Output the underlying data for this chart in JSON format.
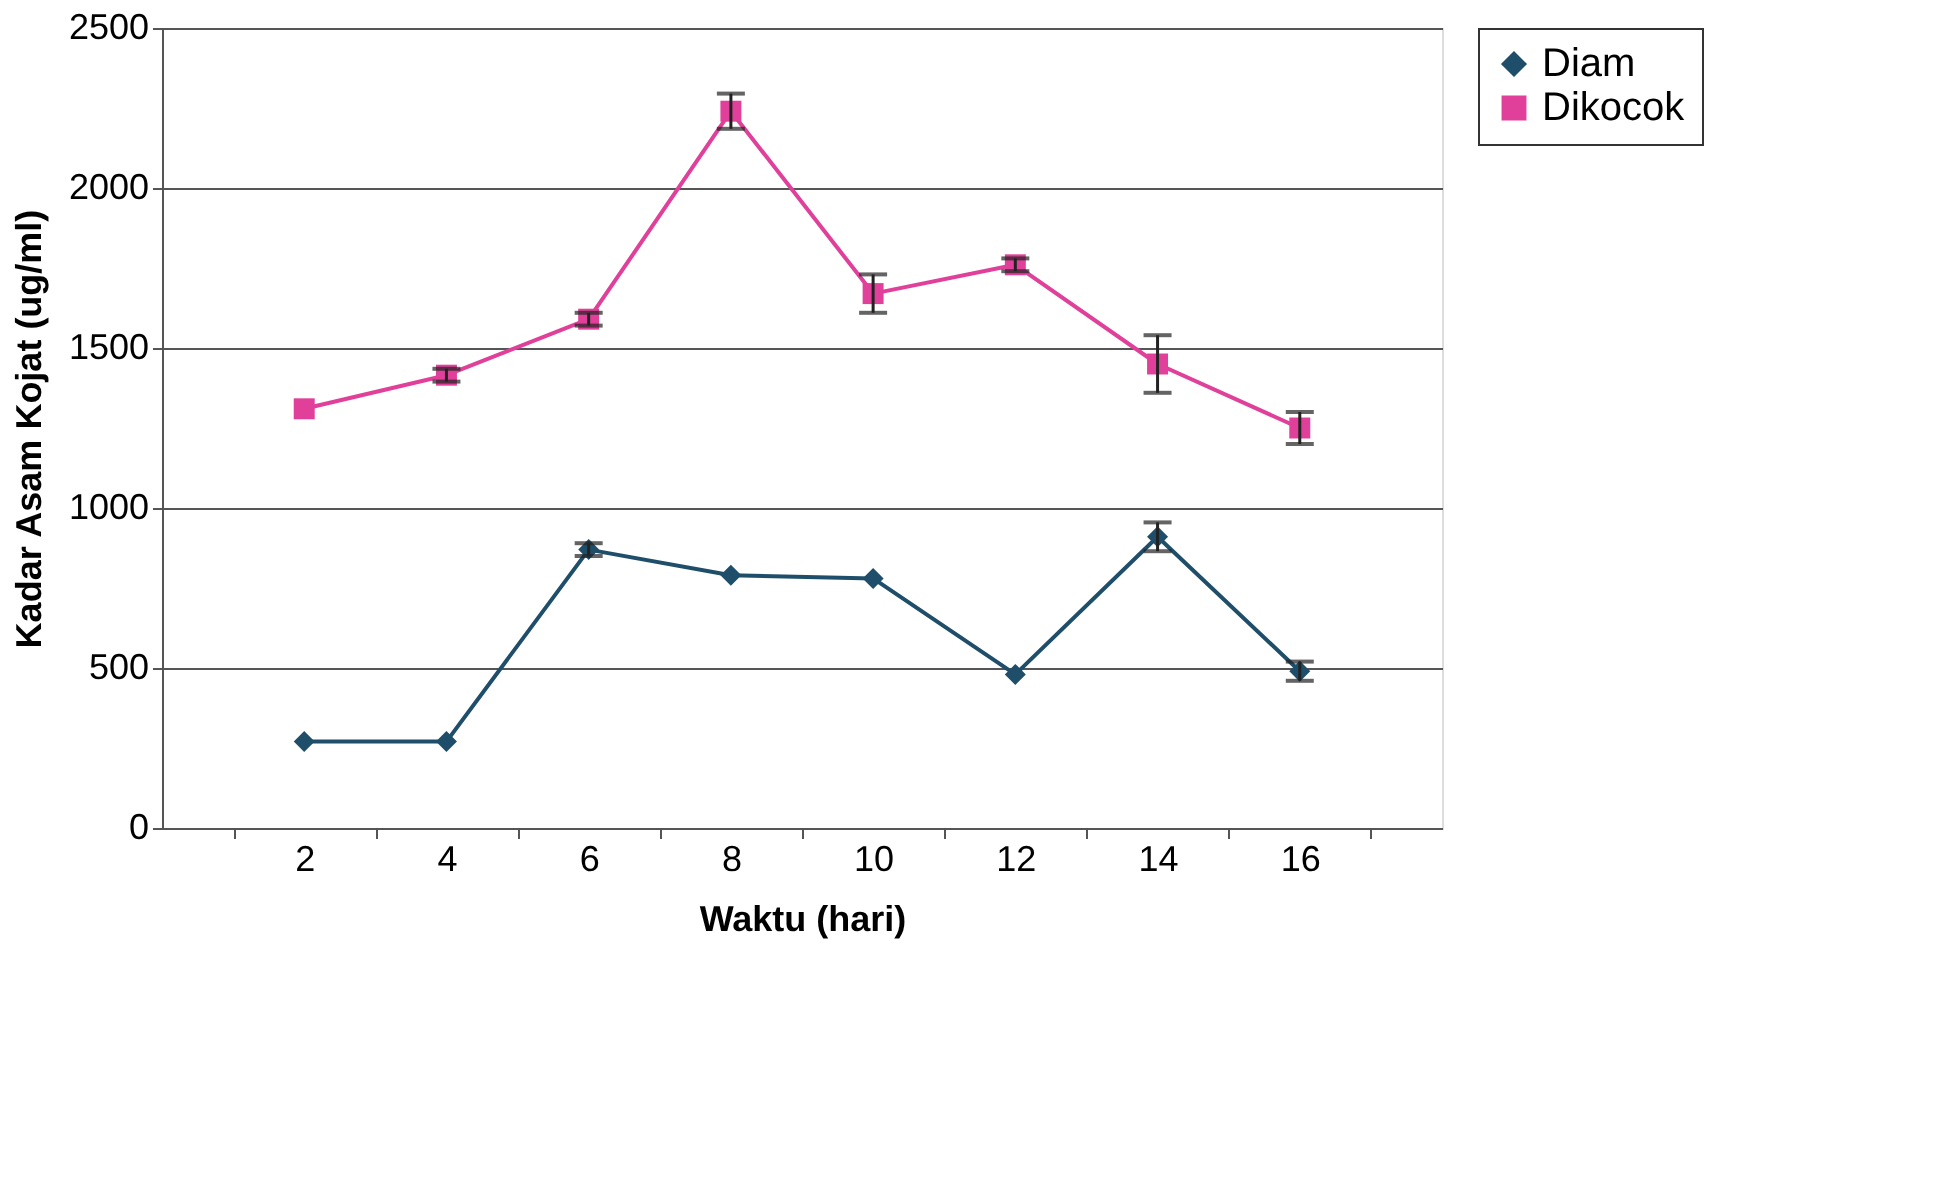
{
  "chart_data": {
    "type": "line",
    "xlabel": "Waktu (hari)",
    "ylabel": "Kadar Asam Kojat (ug/ml)",
    "categories": [
      "2",
      "4",
      "6",
      "8",
      "10",
      "12",
      "14",
      "16"
    ],
    "series": [
      {
        "name": "Diam",
        "color": "#1f4e6b",
        "marker": "diamond",
        "values": [
          270,
          270,
          870,
          790,
          780,
          480,
          910,
          490
        ],
        "errors": [
          null,
          null,
          20,
          null,
          null,
          null,
          45,
          30
        ]
      },
      {
        "name": "Dikocok",
        "color": "#e0409a",
        "marker": "square",
        "values": [
          1310,
          1415,
          1590,
          2240,
          1670,
          1760,
          1450,
          1250
        ],
        "errors": [
          null,
          20,
          20,
          55,
          60,
          20,
          90,
          50
        ]
      }
    ],
    "ylim": [
      0,
      2500
    ],
    "yticks": [
      0,
      500,
      1000,
      1500,
      2000,
      2500
    ],
    "grid": "y",
    "legend": "right",
    "line_style": "solid"
  }
}
